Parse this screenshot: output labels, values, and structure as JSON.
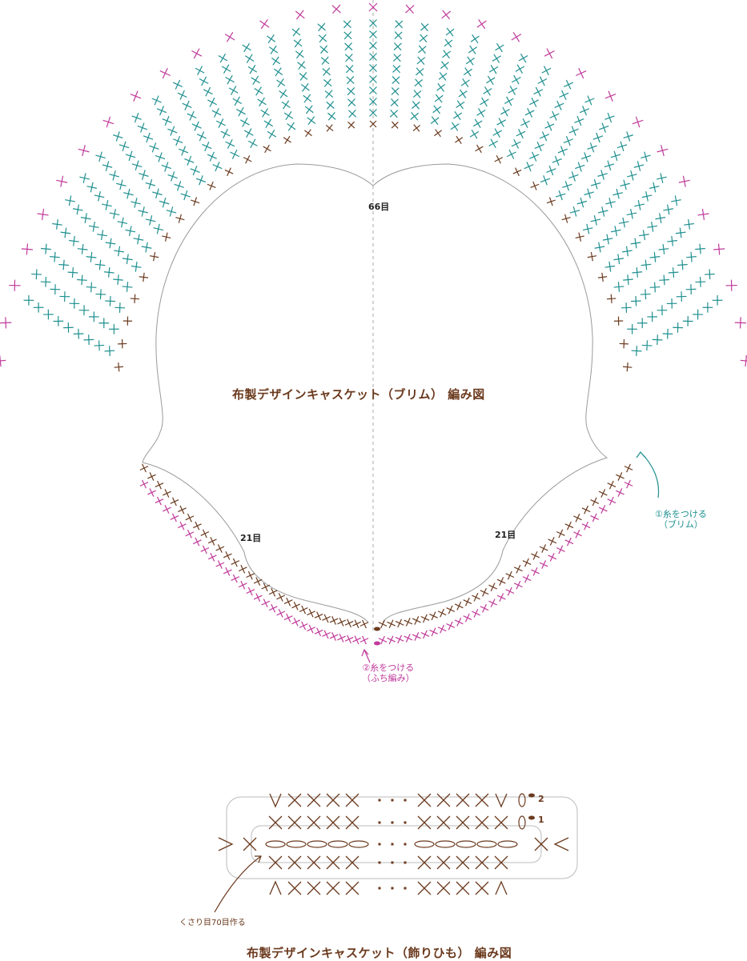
{
  "brim_diagram": {
    "title": "布製デザインキャスケット（ブリム） 編み図",
    "stitch_count_top": "66目",
    "stitch_count_left": "21目",
    "stitch_count_right": "21目",
    "note_attach_brim": {
      "line1": "①糸をつける",
      "line2": "（ブリム）"
    },
    "note_attach_edging": {
      "line1": "②糸をつける",
      "line2": "（ふち編み）"
    },
    "start_marks": [
      "X0",
      "X0"
    ],
    "colors": {
      "brown": "#6b3a1e",
      "teal": "#1f8f8f",
      "pink": "#c0399a",
      "outline": "#9a9a9a",
      "center_line": "#aaaaaa"
    }
  },
  "cord_diagram": {
    "title": "布製デザインキャスケット（飾りひも） 編み図",
    "chain_note": "くさり目70目作る",
    "row_numbers": [
      "2",
      "1"
    ],
    "rows": [
      {
        "left": [
          "V",
          "X",
          "X",
          "X",
          "X"
        ],
        "right": [
          "X",
          "X",
          "X",
          "X",
          "V"
        ],
        "end": "0"
      },
      {
        "left": [
          "X",
          "X",
          "X",
          "X",
          "X"
        ],
        "right": [
          "X",
          "X",
          "X",
          "X",
          "X"
        ],
        "end": "0"
      },
      {
        "left": [
          "O",
          "O",
          "O",
          "O",
          "O"
        ],
        "right": [
          "O",
          "O",
          "O",
          "O",
          "O"
        ],
        "end": ""
      },
      {
        "left": [
          "X",
          "X",
          "X",
          "X",
          "X"
        ],
        "right": [
          "X",
          "X",
          "X",
          "X",
          "X"
        ],
        "end": ""
      },
      {
        "left": [
          "Λ",
          "X",
          "X",
          "X",
          "X"
        ],
        "right": [
          "X",
          "X",
          "X",
          "X",
          "Λ"
        ],
        "end": ""
      }
    ],
    "ellipsis": "・・・",
    "side_marks": {
      "left_outer": ">",
      "left_inner": "X",
      "right_inner": "X",
      "right_outer": "<"
    }
  }
}
